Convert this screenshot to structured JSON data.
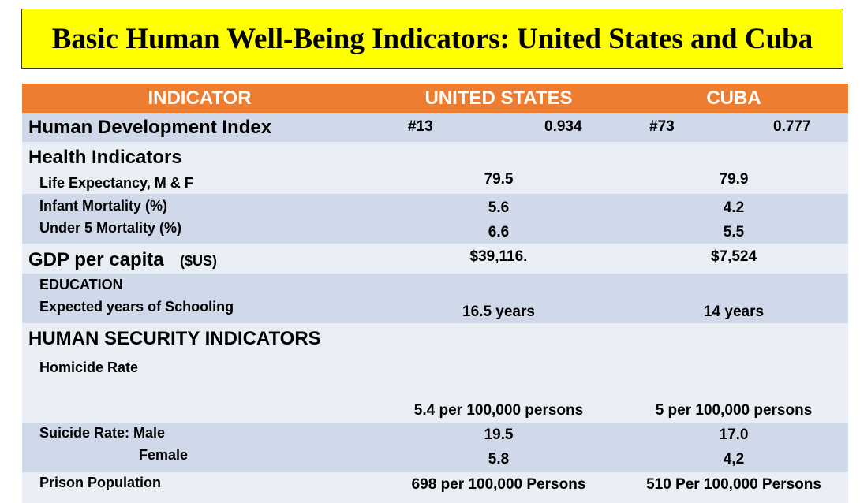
{
  "title": "Basic Human Well-Being Indicators: United States and Cuba",
  "columns": {
    "indicator": "INDICATOR",
    "us": "UNITED STATES",
    "cuba": "CUBA"
  },
  "hdi": {
    "label": "Human Development Index",
    "us_rank": "#13",
    "us_value": "0.934",
    "cuba_rank": "#73",
    "cuba_value": "0.777"
  },
  "health": {
    "heading": "Health Indicators",
    "life_expectancy": {
      "label": "Life Expectancy, M & F",
      "us": "79.5",
      "cuba": "79.9"
    },
    "infant_mortality": {
      "label": "Infant Mortality  (%)",
      "us": "5.6",
      "cuba": "4.2"
    },
    "under5_mortality": {
      "label": "Under 5 Mortality (%)",
      "us": "6.6",
      "cuba": "5.5"
    }
  },
  "gdp": {
    "label": "GDP per capita",
    "unit": "($US)",
    "us": "$39,116.",
    "cuba": "$7,524"
  },
  "education": {
    "heading": "EDUCATION",
    "label": "Expected years of Schooling",
    "us": "16.5 years",
    "cuba": "14 years"
  },
  "security": {
    "heading": "HUMAN SECURITY INDICATORS",
    "homicide": {
      "label": "Homicide Rate",
      "us": "5.4 per 100,000 persons",
      "cuba": "5 per 100,000 persons"
    },
    "suicide": {
      "label_male": "Suicide Rate: Male",
      "label_female": "Female",
      "us_male": "19.5",
      "cuba_male": "17.0",
      "us_female": "5.8",
      "cuba_female": "4,2"
    },
    "prison": {
      "label": "Prison Population",
      "us": "698 per 100,000 Persons",
      "cuba": "510 Per 100,000 Persons"
    }
  }
}
